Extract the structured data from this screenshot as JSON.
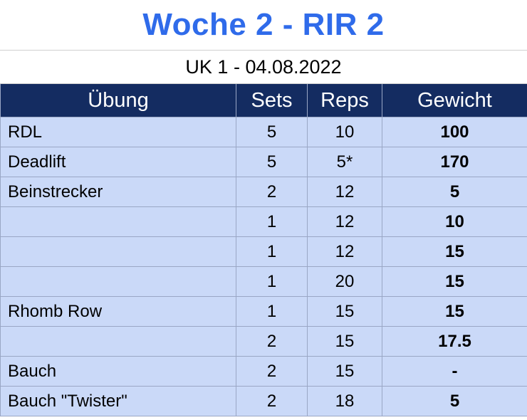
{
  "title": "Woche 2 - RIR 2",
  "subtitle": "UK 1 - 04.08.2022",
  "columns": [
    "Übung",
    "Sets",
    "Reps",
    "Gewicht"
  ],
  "rows": [
    {
      "exercise": "RDL",
      "sets": "5",
      "reps": "10",
      "weight": "100"
    },
    {
      "exercise": "Deadlift",
      "sets": "5",
      "reps": "5*",
      "weight": "170"
    },
    {
      "exercise": "Beinstrecker",
      "sets": "2",
      "reps": "12",
      "weight": "5"
    },
    {
      "exercise": "",
      "sets": "1",
      "reps": "12",
      "weight": "10"
    },
    {
      "exercise": "",
      "sets": "1",
      "reps": "12",
      "weight": "15"
    },
    {
      "exercise": "",
      "sets": "1",
      "reps": "20",
      "weight": "15"
    },
    {
      "exercise": "Rhomb Row",
      "sets": "1",
      "reps": "15",
      "weight": "15"
    },
    {
      "exercise": "",
      "sets": "2",
      "reps": "15",
      "weight": "17.5"
    },
    {
      "exercise": "Bauch",
      "sets": "2",
      "reps": "15",
      "weight": "-"
    },
    {
      "exercise": "Bauch \"Twister\"",
      "sets": "2",
      "reps": "18",
      "weight": "5"
    }
  ],
  "colors": {
    "title": "#2f6bea",
    "header_bg": "#142c61",
    "cell_bg": "#cad9f8",
    "grid": "#9aa7c5"
  }
}
